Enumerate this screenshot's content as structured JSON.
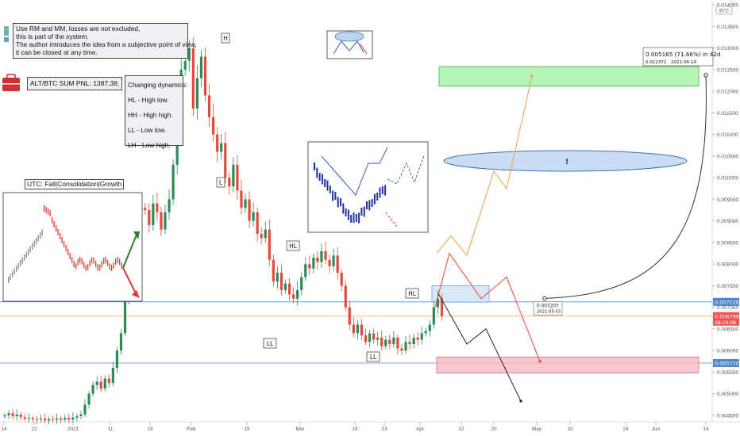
{
  "chart_data": {
    "type": "candlestick",
    "symbol_badge": "BTC",
    "y_axis": {
      "scale": "linear",
      "ylim": [
        0.0044,
        0.0141
      ],
      "ticks": [
        "0.014000",
        "0.013500",
        "0.013000",
        "0.012500",
        "0.012000",
        "0.011500",
        "0.011000",
        "0.010500",
        "0.010000",
        "0.009500",
        "0.009000",
        "0.008500",
        "0.008000",
        "0.007500",
        "0.007000",
        "0.006500",
        "0.006000",
        "0.005500",
        "0.005000",
        "0.004500"
      ]
    },
    "x_axis": {
      "ticks": [
        "14",
        "22",
        "2021",
        "11",
        "19",
        "Feb",
        "15",
        "Mar",
        "15",
        "23",
        "Apr",
        "12",
        "20",
        "May",
        "10",
        "24",
        "Jun",
        "14"
      ]
    },
    "price_labels": [
      {
        "value": 0.007126,
        "text": "0.007126",
        "color": "#4f87c9"
      },
      {
        "value": 0.006796,
        "text": "0.006796",
        "sub": "08:20:08",
        "color": "#ef5350"
      },
      {
        "value": 0.00571,
        "text": "0.005710",
        "color": "#4f87c9"
      }
    ],
    "horizontal_lines": [
      {
        "value": 0.007126,
        "color": "#5b8fd1"
      },
      {
        "value": 0.006796,
        "color": "#f4b183"
      },
      {
        "value": 0.00571,
        "color": "#5b8fd1"
      }
    ],
    "zones": [
      {
        "name": "target-zone",
        "y1": 0.01257,
        "y2": 0.01212,
        "color": "#a3f2a3",
        "border": "#4caf50"
      },
      {
        "name": "resistance-zone",
        "y1": 0.0075,
        "y2": 0.00712,
        "color": "#cfe1f5",
        "border": "#6a9fd8"
      },
      {
        "name": "support-zone",
        "y1": 0.00585,
        "y2": 0.00548,
        "color": "#f8b9c0",
        "border": "#e07080"
      }
    ],
    "structure_labels": [
      "H",
      "L",
      "HL",
      "LL",
      "LL",
      "HL"
    ],
    "scenarios": [
      {
        "name": "growth",
        "color": "#f79c42",
        "points": [
          [
            0.00825
          ],
          [
            0.00865
          ],
          [
            0.0082
          ],
          [
            0.01015
          ],
          [
            0.00975
          ],
          [
            0.01235
          ]
        ]
      },
      {
        "name": "fall",
        "color": "#f44336",
        "points": [
          [
            0.007
          ],
          [
            0.00825
          ],
          [
            0.0072
          ],
          [
            0.0077
          ],
          [
            0.00575
          ]
        ]
      },
      {
        "name": "breakdown",
        "color": "#222222",
        "points": [
          [
            0.00732
          ],
          [
            0.0068
          ],
          [
            0.00615
          ],
          [
            0.0065
          ],
          [
            0.00483
          ]
        ]
      }
    ],
    "measure": {
      "label": "0.005165 (71.66%) in 42d",
      "sub_left": "0.012372",
      "sub_right": "2021-06-14",
      "start_price": "0.007207",
      "start_date": "2021-05-03"
    },
    "ellipse_label": "!",
    "candles": []
  },
  "notes": {
    "rules": [
      "Use RM and MM, losses are not excluded,",
      "this is part of the system.",
      "The author introduces the idea from a subjective point of view,",
      "it can be closed at any time."
    ],
    "pnl": "ALT/BTC SUM PNL: 1387,38.",
    "dynamics": [
      "Changing dynamics:",
      "HL - High low.",
      "HH - High high.",
      "LL - Low low.",
      "LH - Low high."
    ],
    "utc_title": "UTC: Fall|Consolidation|Growth"
  },
  "colors": {
    "up": "#26a69a",
    "up_fill": "#3d9a5f",
    "down": "#e04b3c",
    "axis_text": "#555555"
  }
}
